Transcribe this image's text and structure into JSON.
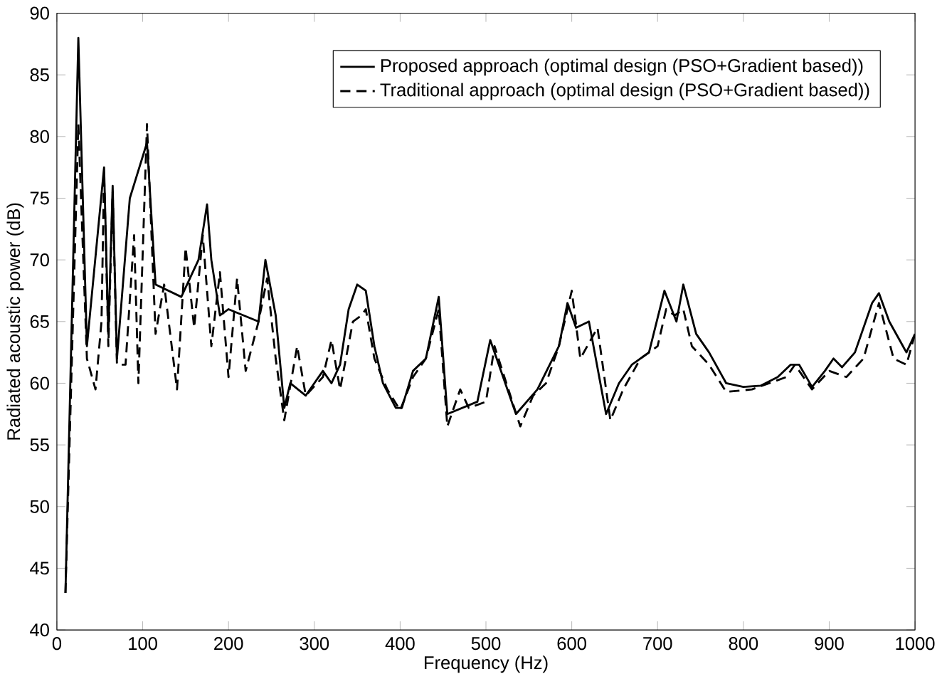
{
  "chart_data": {
    "type": "line",
    "xlabel": "Frequency (Hz)",
    "ylabel": "Radiated acoustic power (dB)",
    "xlim": [
      0,
      1000
    ],
    "ylim": [
      40,
      90
    ],
    "xticks": [
      0,
      100,
      200,
      300,
      400,
      500,
      600,
      700,
      800,
      900,
      1000
    ],
    "yticks": [
      40,
      45,
      50,
      55,
      60,
      65,
      70,
      75,
      80,
      85,
      90
    ],
    "grid": false,
    "legend": "top right",
    "marker": "none",
    "series": [
      {
        "name": "Proposed approach (optimal design (PSO+Gradient based))",
        "color": "#000000",
        "line_style": "solid",
        "x": [
          10,
          25,
          35,
          55,
          60,
          65,
          70,
          85,
          105,
          115,
          145,
          165,
          175,
          180,
          190,
          200,
          235,
          243,
          255,
          265,
          272,
          290,
          310,
          320,
          330,
          340,
          350,
          360,
          370,
          380,
          395,
          402,
          415,
          430,
          445,
          455,
          490,
          505,
          535,
          560,
          585,
          595,
          605,
          620,
          640,
          655,
          670,
          690,
          708,
          722,
          730,
          745,
          760,
          780,
          800,
          820,
          840,
          855,
          865,
          880,
          895,
          905,
          915,
          930,
          950,
          958,
          970,
          990,
          1000
        ],
        "values": [
          43,
          88,
          63,
          77.5,
          64,
          76,
          62,
          75,
          79.5,
          68,
          67,
          70,
          74.5,
          70,
          65.5,
          66,
          65,
          70,
          65.5,
          58,
          60,
          59,
          61,
          60,
          61.5,
          66,
          68,
          67.5,
          63,
          60,
          58,
          58,
          61,
          62,
          67,
          57.5,
          58.5,
          63.5,
          57.5,
          59.5,
          63,
          66.5,
          64.5,
          65,
          57.5,
          60,
          61.5,
          62.5,
          67.5,
          65,
          68,
          64,
          62.5,
          60,
          59.7,
          59.8,
          60.5,
          61.5,
          61.5,
          59.7,
          61,
          62,
          61.3,
          62.5,
          66.5,
          67.3,
          65,
          62.5,
          64
        ]
      },
      {
        "name": "Traditional approach (optimal design (PSO+Gradient based))",
        "color": "#000000",
        "line_style": "dashed",
        "x": [
          10,
          25,
          35,
          45,
          52,
          55,
          60,
          65,
          70,
          80,
          90,
          95,
          105,
          115,
          125,
          140,
          150,
          160,
          170,
          180,
          190,
          200,
          210,
          220,
          235,
          245,
          255,
          265,
          280,
          290,
          310,
          320,
          330,
          345,
          355,
          360,
          370,
          385,
          400,
          415,
          430,
          445,
          455,
          470,
          480,
          500,
          510,
          540,
          555,
          570,
          585,
          600,
          610,
          630,
          645,
          660,
          680,
          700,
          710,
          720,
          730,
          740,
          760,
          780,
          810,
          830,
          850,
          860,
          880,
          900,
          920,
          940,
          958,
          975,
          990,
          1000
        ],
        "values": [
          43,
          81,
          62,
          59.5,
          65,
          77,
          63,
          75.5,
          61.5,
          61.5,
          72,
          60,
          81,
          64,
          68,
          59.5,
          71,
          64.5,
          72,
          63,
          69,
          60.5,
          68.5,
          61,
          65,
          68.5,
          62,
          57,
          63,
          59,
          60.5,
          63.5,
          59.5,
          65,
          65.5,
          66,
          62,
          59.5,
          57.8,
          60.5,
          62,
          66,
          56.5,
          59.5,
          58,
          58.5,
          63,
          56.5,
          59,
          60,
          63,
          67.5,
          62,
          64.5,
          57,
          59.5,
          62,
          63,
          66,
          65.5,
          66,
          63,
          61.5,
          59.3,
          59.5,
          60,
          60.5,
          61.5,
          59.5,
          61,
          60.5,
          62,
          66.5,
          62,
          61.5,
          64
        ]
      }
    ]
  }
}
